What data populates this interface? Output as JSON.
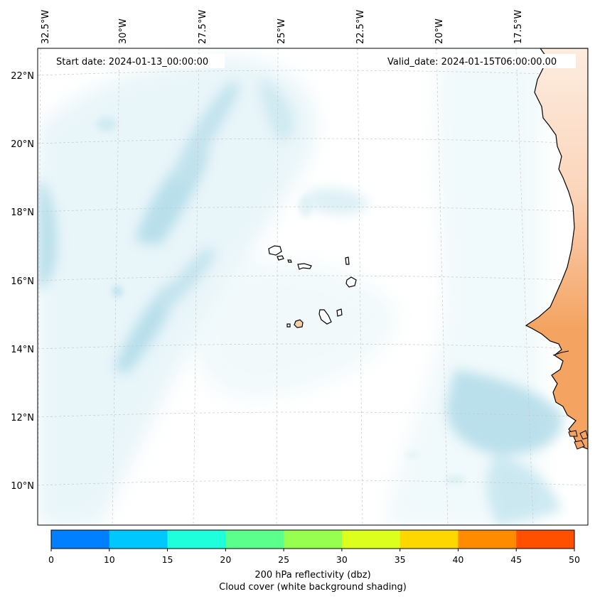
{
  "map": {
    "start_label": "Start date: 2024-01-13_00:00:00",
    "valid_label": "Valid_date: 2024-01-15T06:00:00.00",
    "lon_labels": [
      "32.5°W",
      "30°W",
      "27.5°W",
      "25°W",
      "22.5°W",
      "20°W",
      "17.5°W"
    ],
    "lat_labels": [
      "22°N",
      "20°N",
      "18°N",
      "16°N",
      "14°N",
      "12°N",
      "10°N"
    ],
    "colors": {
      "cloud": "#a9d8e6",
      "land_fill": "#f4a460",
      "coast": "#000000",
      "grid": "#c8c8c8"
    }
  },
  "colorbar": {
    "ticks": [
      "0",
      "10",
      "15",
      "20",
      "25",
      "30",
      "35",
      "40",
      "45",
      "50"
    ],
    "colors": [
      "#0080ff",
      "#00c8ff",
      "#1effdc",
      "#5aff8c",
      "#96ff50",
      "#dcff1e",
      "#ffd700",
      "#ff8c00",
      "#ff5000"
    ],
    "label_line1": "200 hPa reflectivity (dbz)",
    "label_line2": "Cloud cover (white background shading)"
  }
}
